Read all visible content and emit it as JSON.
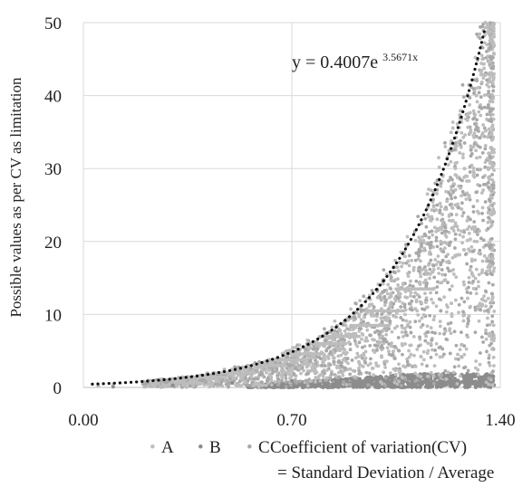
{
  "chart_data": {
    "type": "scatter",
    "ylabel": "Possible values as per CV as limitation",
    "xlabel_line1": "Coefficient of variation(CV)",
    "xlabel_line2": "= Standard Deviation / Average",
    "xlim": [
      0.0,
      1.4
    ],
    "ylim": [
      0,
      50
    ],
    "x_ticks": [
      "0.00",
      "0.70",
      "1.40"
    ],
    "x_tick_values": [
      0.0,
      0.7,
      1.4
    ],
    "y_ticks": [
      "0",
      "10",
      "20",
      "30",
      "40",
      "50"
    ],
    "y_tick_values": [
      0,
      10,
      20,
      30,
      40,
      50
    ],
    "grid": true,
    "legend_position": "bottom",
    "legend_items": [
      {
        "marker": "•",
        "label": "A"
      },
      {
        "marker": "•",
        "label": "B"
      },
      {
        "marker": "•",
        "label": "C"
      }
    ],
    "trendline": {
      "equation_prefix": "y = 0.4007e",
      "equation_exponent": "3.5671x",
      "a": 0.4007,
      "b": 3.5671,
      "style": "dotted",
      "color": "#111111"
    },
    "series": [
      {
        "name": "A",
        "color": "#bdbdbd",
        "description_x_range": [
          0.0,
          1.38
        ],
        "description_y_range": [
          0,
          50
        ]
      },
      {
        "name": "B",
        "color": "#8c8c8c",
        "description_x_range": [
          0.0,
          1.38
        ],
        "description_y_range": [
          0,
          2
        ]
      },
      {
        "name": "C",
        "color": "#a8a8a8",
        "description_x_range": [
          0.0,
          1.38
        ],
        "description_y_range": [
          0,
          11
        ]
      }
    ],
    "sample_points": {
      "A": [
        [
          0.05,
          0.2
        ],
        [
          0.1,
          0.4
        ],
        [
          0.2,
          0.6
        ],
        [
          0.3,
          1.0
        ],
        [
          0.4,
          1.3
        ],
        [
          0.5,
          1.8
        ],
        [
          0.6,
          2.6
        ],
        [
          0.7,
          3.4
        ],
        [
          0.8,
          4.8
        ],
        [
          0.9,
          7.0
        ],
        [
          1.0,
          9.5
        ],
        [
          1.1,
          13
        ],
        [
          1.15,
          16
        ],
        [
          1.2,
          20
        ],
        [
          1.25,
          25
        ],
        [
          1.28,
          30
        ],
        [
          1.3,
          35
        ],
        [
          1.32,
          40
        ],
        [
          1.34,
          45
        ],
        [
          1.35,
          50
        ]
      ],
      "B": [
        [
          0.1,
          0.1
        ],
        [
          0.3,
          0.3
        ],
        [
          0.5,
          0.6
        ],
        [
          0.7,
          0.9
        ],
        [
          0.9,
          1.2
        ],
        [
          1.1,
          1.5
        ],
        [
          1.3,
          1.7
        ]
      ],
      "C": [
        [
          0.2,
          0.5
        ],
        [
          0.4,
          1.0
        ],
        [
          0.6,
          1.8
        ],
        [
          0.8,
          3.0
        ],
        [
          1.0,
          5.5
        ],
        [
          1.1,
          7.5
        ],
        [
          1.2,
          10.5
        ]
      ]
    }
  }
}
